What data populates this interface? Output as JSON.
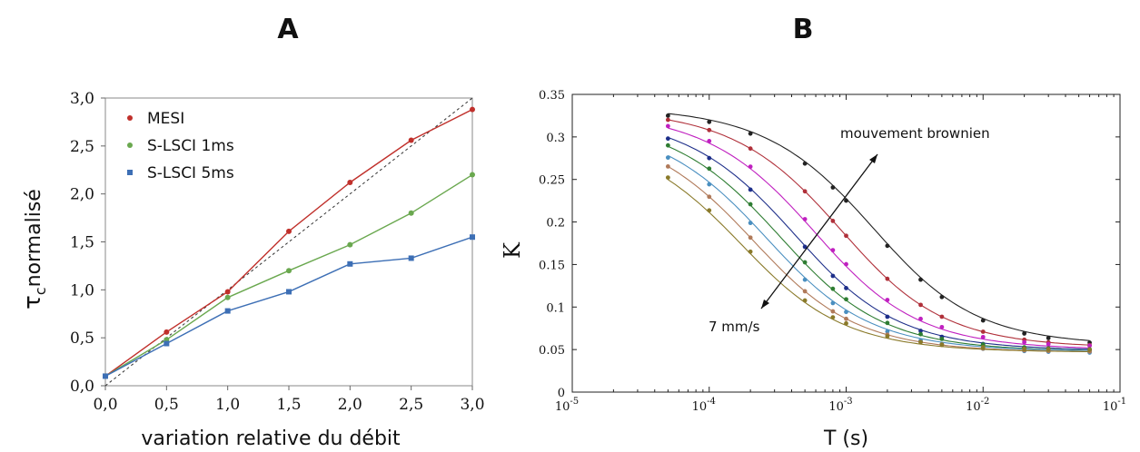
{
  "panels": {
    "a_letter": "A",
    "b_letter": "B"
  },
  "chart_data": [
    {
      "type": "line",
      "panel": "A",
      "xlabel": "variation relative du débit",
      "ylabel": "τcnormalisé",
      "ylabel_main": "τ",
      "ylabel_sub": "c",
      "ylabel_rest": "normalisé",
      "xlim": [
        0,
        3
      ],
      "ylim": [
        0,
        3
      ],
      "x_ticks": [
        "0,0",
        "0,5",
        "1,0",
        "1,5",
        "2,0",
        "2,5",
        "3,0"
      ],
      "y_ticks": [
        "0,0",
        "0,5",
        "1,0",
        "1,5",
        "2,0",
        "2,5",
        "3,0"
      ],
      "x": [
        0,
        0.5,
        1.0,
        1.5,
        2.0,
        2.5,
        3.0
      ],
      "legend_position": "top-left",
      "series": [
        {
          "name": "MESI",
          "color": "#c0302b",
          "values": [
            0.1,
            0.56,
            0.98,
            1.61,
            2.12,
            2.56,
            2.88
          ]
        },
        {
          "name": "S-LSCI 1ms",
          "color": "#6aa84f",
          "values": [
            0.1,
            0.48,
            0.92,
            1.2,
            1.47,
            1.8,
            2.2
          ]
        },
        {
          "name": "S-LSCI 5ms",
          "color": "#3d6fb5",
          "values": [
            0.1,
            0.44,
            0.78,
            0.98,
            1.27,
            1.33,
            1.55
          ]
        }
      ],
      "reference_line": {
        "style": "dashed",
        "color": "#333333",
        "from": [
          0,
          0
        ],
        "to": [
          3,
          3
        ]
      }
    },
    {
      "type": "line",
      "panel": "B",
      "xlabel": "T (s)",
      "ylabel": "K",
      "x_scale": "log",
      "xlim": [
        1e-05,
        0.1
      ],
      "ylim": [
        0,
        0.35
      ],
      "x_tick_values": [
        1e-05,
        0.0001,
        0.001,
        0.01,
        0.1
      ],
      "x_tick_exponents": [
        "-5",
        "-4",
        "-3",
        "-2",
        "-1"
      ],
      "x_tick_base": "10",
      "y_tick_values": [
        0,
        0.05,
        0.1,
        0.15,
        0.2,
        0.25,
        0.3,
        0.35
      ],
      "y_ticks": [
        "0",
        "0.05",
        "0.1",
        "0.15",
        "0.2",
        "0.25",
        "0.3",
        "0.35"
      ],
      "x": [
        5e-05,
        0.0001,
        0.0002,
        0.0005,
        0.0008,
        0.001,
        0.002,
        0.0035,
        0.005,
        0.01,
        0.02,
        0.03,
        0.06
      ],
      "series": [
        {
          "color": "#222222",
          "beta": 0.335,
          "tau": 0.0012,
          "rho": 0.055
        },
        {
          "color": "#b0303a",
          "beta": 0.333,
          "tau": 0.0007,
          "rho": 0.052
        },
        {
          "color": "#c020c0",
          "beta": 0.33,
          "tau": 0.00045,
          "rho": 0.05
        },
        {
          "color": "#1e2f8a",
          "beta": 0.326,
          "tau": 0.00032,
          "rho": 0.049
        },
        {
          "color": "#2e7d32",
          "beta": 0.322,
          "tau": 0.00025,
          "rho": 0.048
        },
        {
          "color": "#4a8fc0",
          "beta": 0.318,
          "tau": 0.0002,
          "rho": 0.048
        },
        {
          "color": "#b07a5a",
          "beta": 0.313,
          "tau": 0.00016,
          "rho": 0.047
        },
        {
          "color": "#8a7a2a",
          "beta": 0.305,
          "tau": 0.00013,
          "rho": 0.047
        }
      ],
      "annotations": {
        "top": "mouvement brownien",
        "bottom": "7 mm/s"
      }
    }
  ]
}
